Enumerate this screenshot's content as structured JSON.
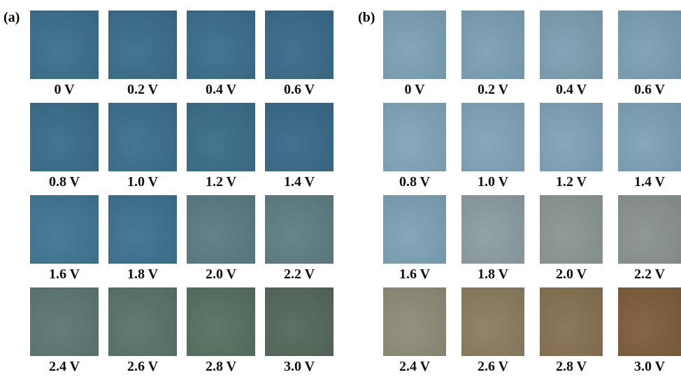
{
  "panels": [
    {
      "label": "(a)",
      "items": [
        {
          "label": "0 V",
          "color": "#3b6e8c"
        },
        {
          "label": "0.2 V",
          "color": "#3a6c8a"
        },
        {
          "label": "0.4 V",
          "color": "#3b6d8b"
        },
        {
          "label": "0.6 V",
          "color": "#396a88"
        },
        {
          "label": "0.8 V",
          "color": "#3a6c8a"
        },
        {
          "label": "1.0 V",
          "color": "#3b6e8c"
        },
        {
          "label": "1.2 V",
          "color": "#3a6c89"
        },
        {
          "label": "1.4 V",
          "color": "#386987"
        },
        {
          "label": "1.6 V",
          "color": "#3f7593"
        },
        {
          "label": "1.8 V",
          "color": "#3c7190"
        },
        {
          "label": "2.0 V",
          "color": "#5a7b82"
        },
        {
          "label": "2.2 V",
          "color": "#5e7d82"
        },
        {
          "label": "2.4 V",
          "color": "#5b7672"
        },
        {
          "label": "2.6 V",
          "color": "#58726b"
        },
        {
          "label": "2.8 V",
          "color": "#556f60"
        },
        {
          "label": "3.0 V",
          "color": "#54675a"
        }
      ]
    },
    {
      "label": "(b)",
      "items": [
        {
          "label": "0 V",
          "color": "#7ba0b4"
        },
        {
          "label": "0.2 V",
          "color": "#7a9fb3"
        },
        {
          "label": "0.4 V",
          "color": "#7c9fb2"
        },
        {
          "label": "0.6 V",
          "color": "#7b9fb3"
        },
        {
          "label": "0.8 V",
          "color": "#80a4b7"
        },
        {
          "label": "1.0 V",
          "color": "#7fa3b7"
        },
        {
          "label": "1.2 V",
          "color": "#7ea2b6"
        },
        {
          "label": "1.4 V",
          "color": "#7da1b5"
        },
        {
          "label": "1.6 V",
          "color": "#7ca1b5"
        },
        {
          "label": "1.8 V",
          "color": "#8b9ca0"
        },
        {
          "label": "2.0 V",
          "color": "#8a9593"
        },
        {
          "label": "2.2 V",
          "color": "#8a928d"
        },
        {
          "label": "2.4 V",
          "color": "#8b8b76"
        },
        {
          "label": "2.6 V",
          "color": "#8a7d5f"
        },
        {
          "label": "2.8 V",
          "color": "#857150"
        },
        {
          "label": "3.0 V",
          "color": "#7b5d3b"
        }
      ]
    }
  ]
}
